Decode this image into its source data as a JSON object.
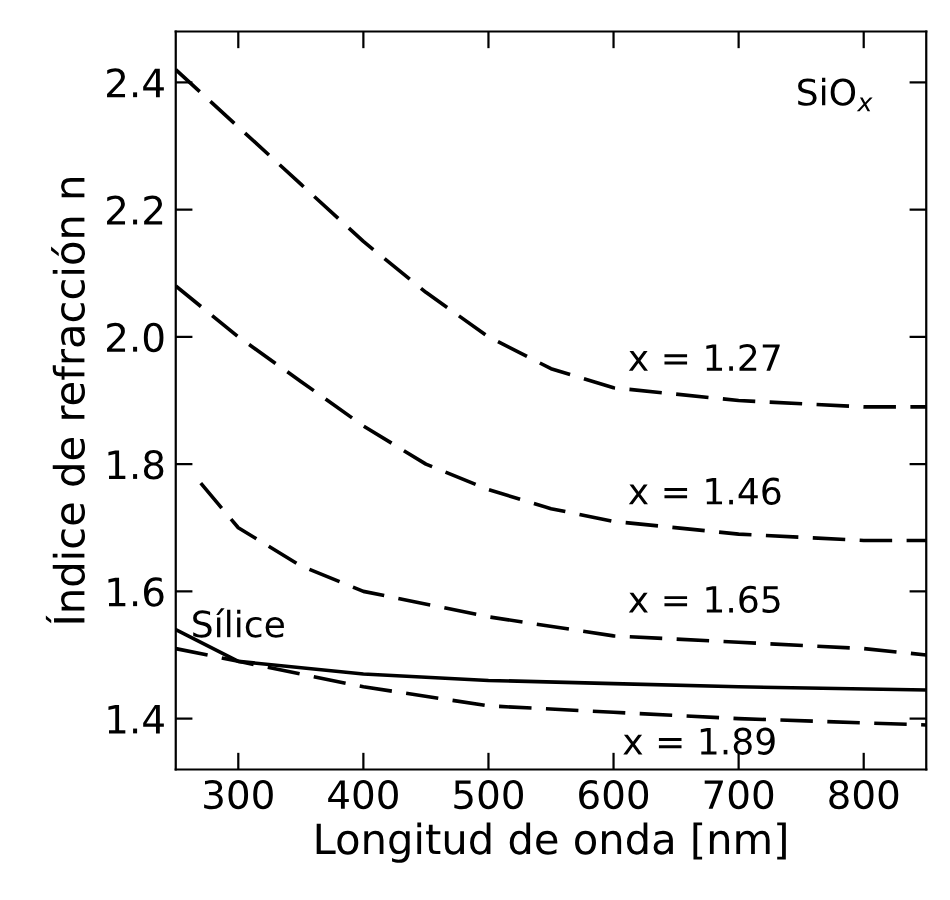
{
  "chart_data": {
    "type": "line",
    "xlabel": "Longitud de onda [nm]",
    "ylabel": "Índice de refracción n",
    "xlim": [
      250,
      850
    ],
    "ylim": [
      1.32,
      2.48
    ],
    "xticks": [
      300,
      400,
      500,
      600,
      700,
      800
    ],
    "yticks": [
      1.4,
      1.6,
      1.8,
      {
        "value": 2.0,
        "label": "2.0"
      },
      2.2,
      2.4
    ],
    "grid": false,
    "legend": false,
    "marker": "none",
    "annotations": [
      "SiO$_{x}$"
    ],
    "series": [
      {
        "name": "x = 1.27",
        "color": "#000000",
        "line_style": "dashed",
        "x": [
          250,
          300,
          350,
          400,
          450,
          500,
          550,
          600,
          650,
          700,
          800,
          850
        ],
        "values": [
          2.42,
          2.33,
          2.24,
          2.15,
          2.07,
          2.0,
          1.95,
          1.92,
          1.91,
          1.9,
          1.89,
          1.89
        ]
      },
      {
        "name": "x = 1.46",
        "color": "#000000",
        "line_style": "dashed",
        "x": [
          250,
          300,
          350,
          400,
          450,
          500,
          550,
          600,
          700,
          800,
          850
        ],
        "values": [
          2.08,
          2.0,
          1.93,
          1.86,
          1.8,
          1.76,
          1.73,
          1.71,
          1.69,
          1.68,
          1.68
        ]
      },
      {
        "name": "x = 1.65",
        "color": "#000000",
        "line_style": "dashed",
        "x": [
          270,
          300,
          350,
          400,
          500,
          600,
          700,
          800,
          850
        ],
        "values": [
          1.77,
          1.7,
          1.64,
          1.6,
          1.56,
          1.53,
          1.52,
          1.51,
          1.5
        ]
      },
      {
        "name": "Sílice",
        "color": "#000000",
        "line_style": "solid",
        "x": [
          250,
          300,
          400,
          500,
          600,
          700,
          850
        ],
        "values": [
          1.54,
          1.49,
          1.47,
          1.46,
          1.455,
          1.45,
          1.445
        ]
      },
      {
        "name": "x = 1.89",
        "color": "#000000",
        "line_style": "dashed",
        "x": [
          250,
          300,
          400,
          500,
          600,
          700,
          850
        ],
        "values": [
          1.51,
          1.49,
          1.45,
          1.42,
          1.41,
          1.4,
          1.39
        ]
      }
    ]
  }
}
